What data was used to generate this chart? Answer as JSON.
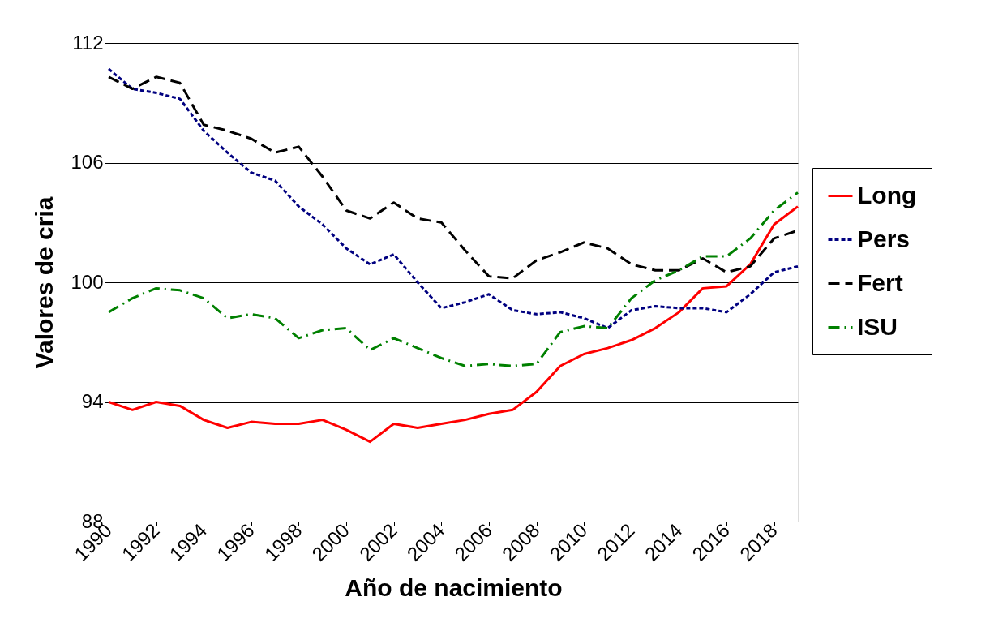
{
  "chart_data": {
    "type": "line",
    "xlabel": "Año de nacimiento",
    "ylabel": "Valores de cria",
    "x": [
      1990,
      1991,
      1992,
      1993,
      1994,
      1995,
      1996,
      1997,
      1998,
      1999,
      2000,
      2001,
      2002,
      2003,
      2004,
      2005,
      2006,
      2007,
      2008,
      2009,
      2010,
      2011,
      2012,
      2013,
      2014,
      2015,
      2016,
      2017,
      2018,
      2019
    ],
    "series": [
      {
        "name": "Long",
        "color": "#ff0000",
        "line_style": "solid",
        "values": [
          94.0,
          93.6,
          94.0,
          93.8,
          93.1,
          92.7,
          93.0,
          92.9,
          92.9,
          93.1,
          92.6,
          92.0,
          92.9,
          92.7,
          92.9,
          93.1,
          93.4,
          93.6,
          94.5,
          95.8,
          96.4,
          96.7,
          97.1,
          97.7,
          98.5,
          99.7,
          99.8,
          100.9,
          102.9,
          103.8
        ]
      },
      {
        "name": "Pers",
        "color": "#000080",
        "line_style": "dotted",
        "values": [
          110.7,
          109.7,
          109.5,
          109.2,
          107.6,
          106.5,
          105.5,
          105.1,
          103.8,
          102.9,
          101.7,
          100.9,
          101.4,
          100.0,
          98.7,
          99.0,
          99.4,
          98.6,
          98.4,
          98.5,
          98.2,
          97.7,
          98.6,
          98.8,
          98.7,
          98.7,
          98.5,
          99.4,
          100.5,
          100.8
        ]
      },
      {
        "name": "Fert",
        "color": "#000000",
        "line_style": "dashed",
        "values": [
          110.3,
          109.7,
          110.3,
          110.0,
          107.9,
          107.6,
          107.2,
          106.5,
          106.8,
          105.3,
          103.6,
          103.2,
          104.0,
          103.2,
          103.0,
          101.6,
          100.3,
          100.2,
          101.1,
          101.5,
          102.0,
          101.7,
          100.9,
          100.6,
          100.6,
          101.2,
          100.5,
          100.8,
          102.2,
          102.6
        ]
      },
      {
        "name": "ISU",
        "color": "#008000",
        "line_style": "dashdot",
        "values": [
          98.5,
          99.2,
          99.7,
          99.6,
          99.2,
          98.2,
          98.4,
          98.2,
          97.2,
          97.6,
          97.7,
          96.6,
          97.2,
          96.7,
          96.2,
          95.8,
          95.9,
          95.8,
          95.9,
          97.5,
          97.8,
          97.7,
          99.2,
          100.1,
          100.6,
          101.3,
          101.3,
          102.2,
          103.6,
          104.5
        ]
      }
    ],
    "xlim": [
      1990,
      2019
    ],
    "xticks": [
      1990,
      1992,
      1994,
      1996,
      1998,
      2000,
      2002,
      2004,
      2006,
      2008,
      2010,
      2012,
      2014,
      2016,
      2018
    ],
    "ylim": [
      88,
      112
    ],
    "yticks": [
      88,
      94,
      100,
      106,
      112
    ],
    "grid": "y",
    "legend": "right"
  }
}
